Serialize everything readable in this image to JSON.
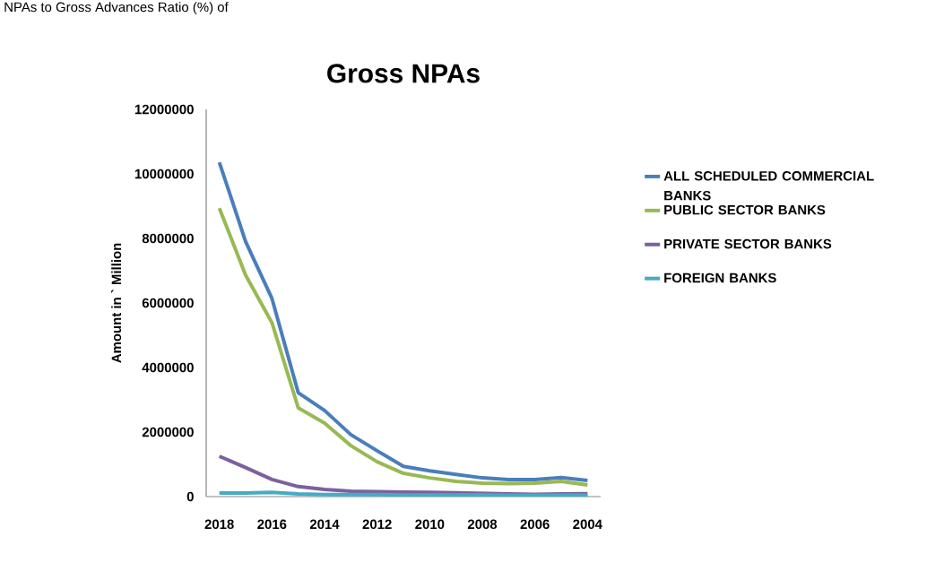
{
  "chart_data": {
    "type": "line",
    "title": "Gross NPAs",
    "ylabel": "Amount in ` Million",
    "annotations": [
      "NPAs to Gross Advances Ratio (%) of"
    ],
    "categories": [
      "2018",
      null,
      "2016",
      null,
      "2014",
      null,
      "2012",
      null,
      "2010",
      null,
      "2008",
      null,
      "2006",
      null,
      "2004"
    ],
    "series": [
      {
        "name": "ALL SCHEDULED COMMERCIAL BANKS",
        "color": "#4a7ebb",
        "values": [
          10360000,
          7900000,
          6140000,
          3220000,
          2670000,
          1920000,
          1420000,
          940000,
          800000,
          690000,
          580000,
          530000,
          530000,
          590000,
          500000
        ]
      },
      {
        "name": "PUBLIC SECTOR BANKS",
        "color": "#98b954",
        "values": [
          8940000,
          6860000,
          5390000,
          2750000,
          2280000,
          1580000,
          1080000,
          720000,
          580000,
          470000,
          420000,
          400000,
          420000,
          470000,
          360000
        ]
      },
      {
        "name": "PRIVATE SECTOR BANKS",
        "color": "#7d60a0",
        "values": [
          1250000,
          900000,
          530000,
          310000,
          220000,
          170000,
          150000,
          140000,
          130000,
          120000,
          100000,
          80000,
          70000,
          80000,
          90000
        ]
      },
      {
        "name": "FOREIGN BANKS",
        "color": "#46aac5",
        "values": [
          110000,
          110000,
          130000,
          80000,
          60000,
          60000,
          60000,
          50000,
          50000,
          50000,
          50000,
          40000,
          40000,
          40000,
          40000
        ]
      }
    ],
    "ylim": [
      0,
      12000000
    ],
    "yticks": [
      0,
      2000000,
      4000000,
      6000000,
      8000000,
      10000000,
      12000000
    ],
    "grid": false,
    "legend": "right",
    "marker": "none",
    "line_style": "solid"
  }
}
